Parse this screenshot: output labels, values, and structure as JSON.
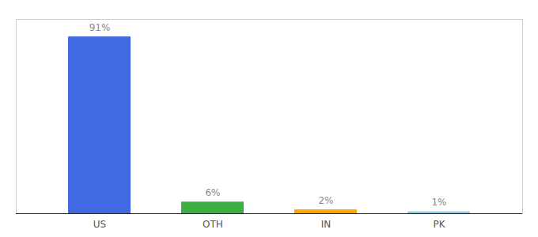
{
  "chart_data": {
    "type": "bar",
    "categories": [
      "US",
      "OTH",
      "IN",
      "PK"
    ],
    "values": [
      91,
      6,
      2,
      1
    ],
    "colors": [
      "#4169E1",
      "#3CB043",
      "#FFA500",
      "#87CEEB"
    ],
    "value_labels": [
      "91%",
      "6%",
      "2%",
      "1%"
    ],
    "data_labels": true,
    "ylim": [
      0,
      100
    ],
    "tick_labels": "x",
    "grid": false
  }
}
